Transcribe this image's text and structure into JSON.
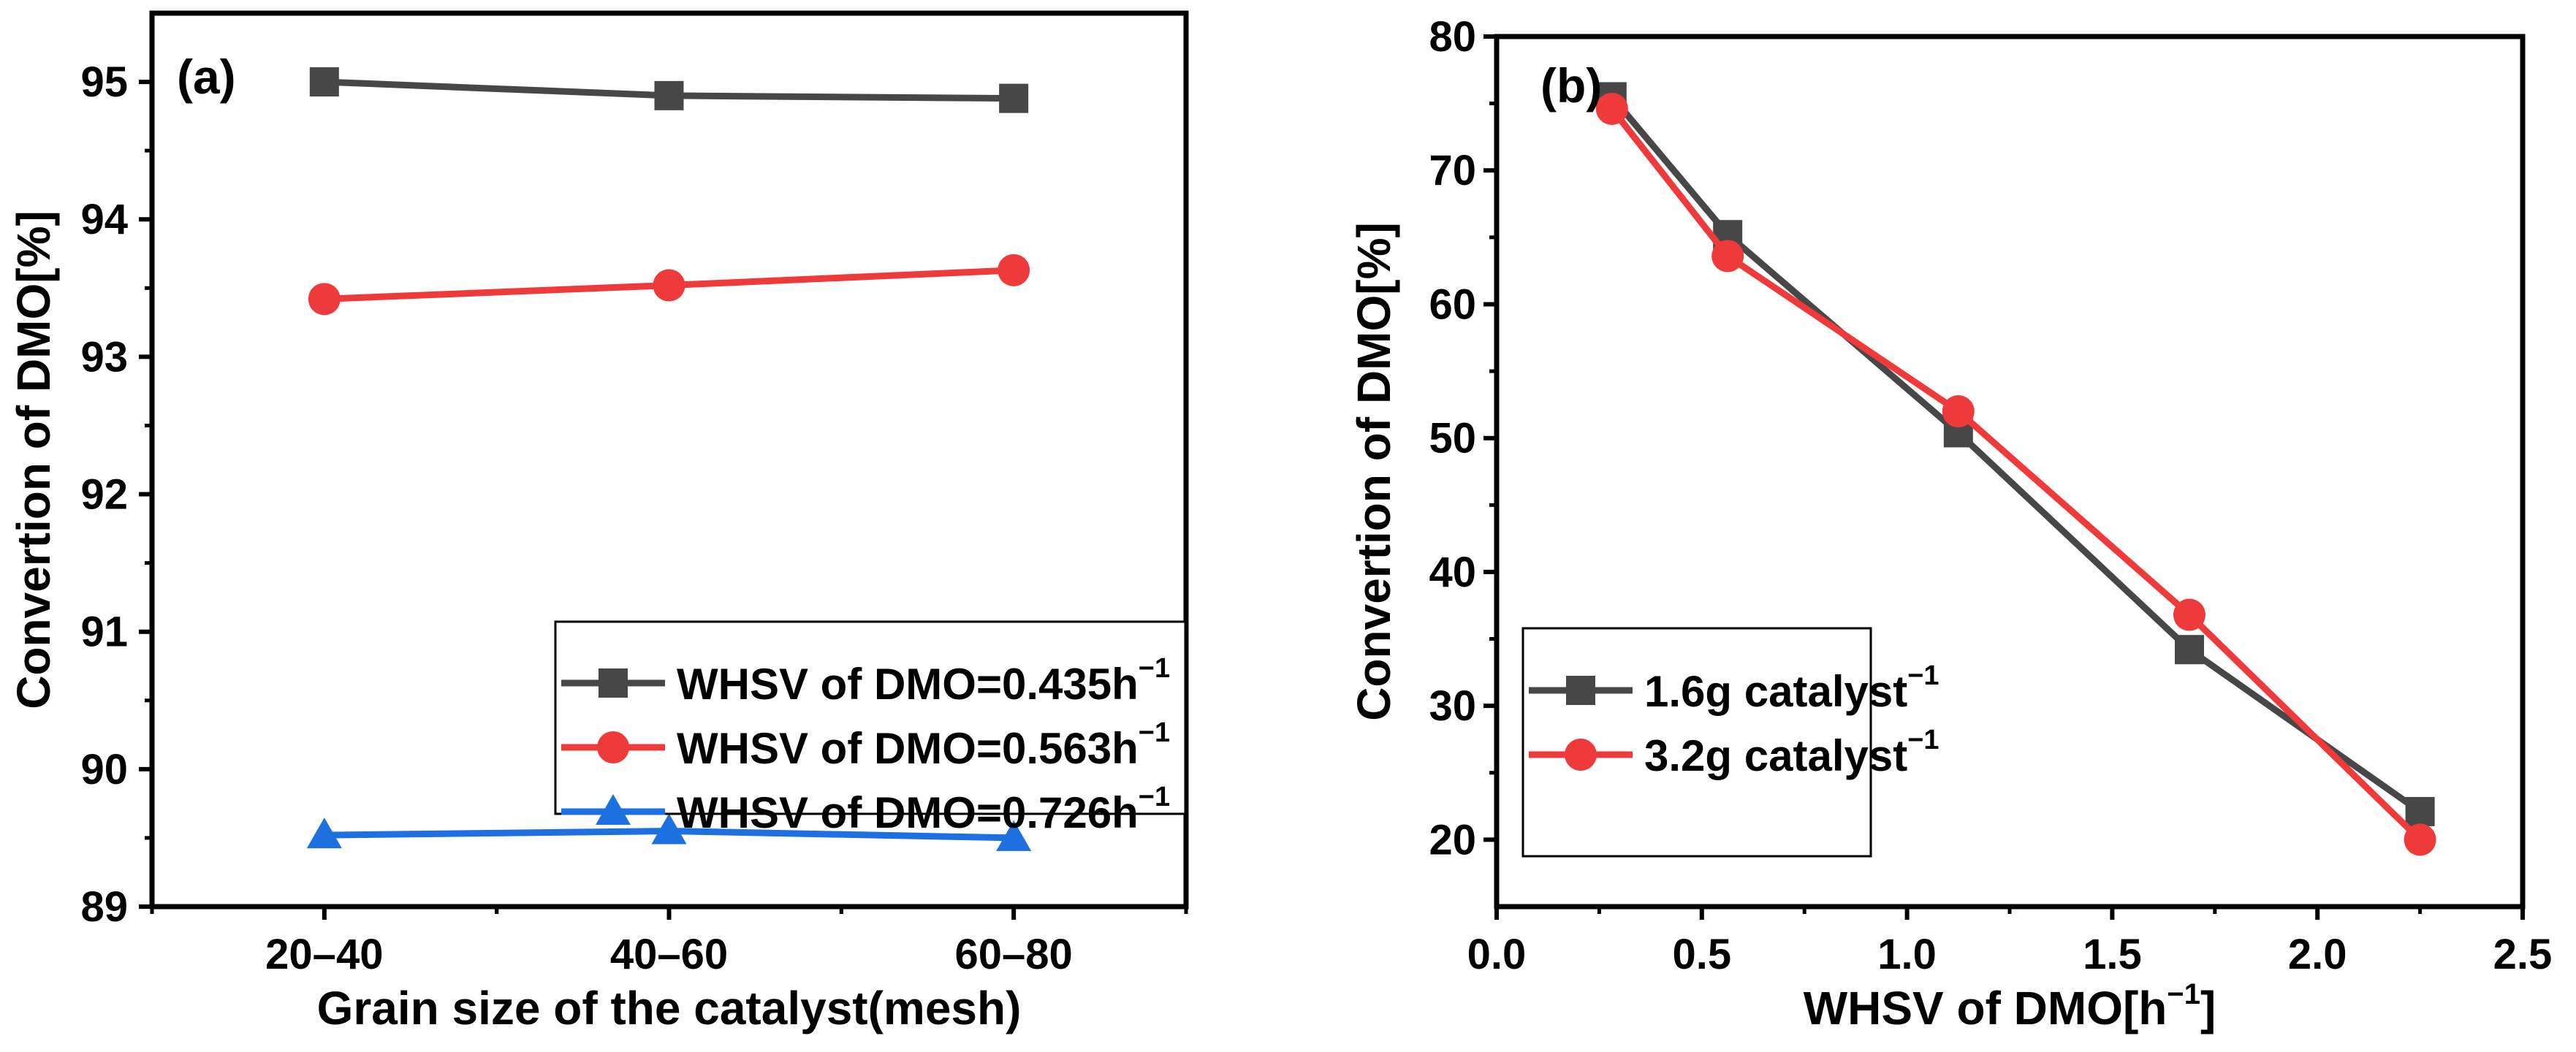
{
  "colors": {
    "gray": "#474747",
    "red": "#ee3a3a",
    "blue": "#1e6fe0"
  },
  "chart_data": [
    {
      "type": "line",
      "panel_label": "(a)",
      "xlabel": "Grain size of the catalyst(mesh)",
      "ylabel": "Convertion of DMO[%]",
      "categories": [
        "20–40",
        "40–60",
        "60–80"
      ],
      "xlim": [
        0.5,
        3.5
      ],
      "ylim": [
        89,
        95.5
      ],
      "yticks": [
        89,
        90,
        91,
        92,
        93,
        94,
        95
      ],
      "legend_position": "bottom-right",
      "series": [
        {
          "name": "WHSV of DMO=0.435h",
          "sup": "−1",
          "marker": "square",
          "color": "#474747",
          "values": [
            95.0,
            94.9,
            94.88
          ]
        },
        {
          "name": "WHSV of DMO=0.563h",
          "sup": "−1",
          "marker": "circle",
          "color": "#ee3a3a",
          "values": [
            93.42,
            93.52,
            93.63
          ]
        },
        {
          "name": "WHSV of DMO=0.726h",
          "sup": "−1",
          "marker": "triangle",
          "color": "#1e6fe0",
          "values": [
            89.52,
            89.55,
            89.5
          ]
        }
      ]
    },
    {
      "type": "line",
      "panel_label": "(b)",
      "xlabel": "WHSV of DMO[h",
      "xlabel_sup": "−1",
      "xlabel_end": "]",
      "ylabel": "Convertion of DMO[%]",
      "x": [
        0.281,
        0.563,
        1.125,
        1.688,
        2.25
      ],
      "xlim": [
        0,
        2.5
      ],
      "ylim": [
        15,
        80
      ],
      "xticks": [
        "0.0",
        "0.5",
        "1.0",
        "1.5",
        "2.0",
        "2.5"
      ],
      "yticks": [
        20,
        30,
        40,
        50,
        60,
        70,
        80
      ],
      "legend_position": "bottom-left",
      "series": [
        {
          "name": "1.6g catalyst",
          "sup": "−1",
          "marker": "square",
          "color": "#474747",
          "values": [
            75.5,
            65.2,
            50.4,
            34.2,
            22.1
          ]
        },
        {
          "name": "3.2g catalyst",
          "sup": "−1",
          "marker": "circle",
          "color": "#ee3a3a",
          "values": [
            74.6,
            63.6,
            52.0,
            36.8,
            20.0
          ]
        }
      ]
    }
  ]
}
